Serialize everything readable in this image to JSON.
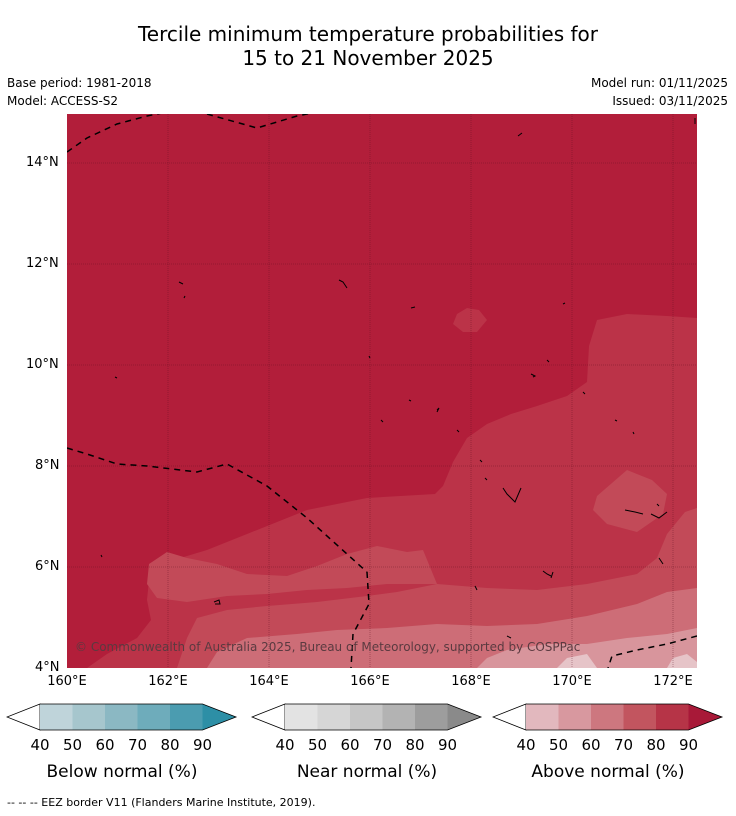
{
  "title_line1": "Tercile minimum temperature probabilities for",
  "title_line2": "15 to 21 November 2025",
  "base_period": "Base period: 1981-2018",
  "model": "Model: ACCESS-S2",
  "model_run": "Model run: 01/11/2025",
  "issued": "Issued: 03/11/2025",
  "copyright": "© Commonwealth of Australia 2025, Bureau of Meteorology, supported by COSPPac",
  "lat_labels": [
    "14°N",
    "12°N",
    "10°N",
    "8°N",
    "6°N",
    "4°N"
  ],
  "lon_labels": [
    "160°E",
    "162°E",
    "164°E",
    "166°E",
    "168°E",
    "170°E",
    "172°E"
  ],
  "colorbars": [
    {
      "label": "Below normal (%)",
      "ticks": [
        "40",
        "50",
        "60",
        "70",
        "80",
        "90"
      ],
      "colors": [
        "#bfd4da",
        "#a6c6cd",
        "#8bb8c3",
        "#6eacbb",
        "#4b9cb0",
        "#2d8fa6"
      ]
    },
    {
      "label": "Near normal (%)",
      "ticks": [
        "40",
        "50",
        "60",
        "70",
        "80",
        "90"
      ],
      "colors": [
        "#e3e3e3",
        "#d6d6d6",
        "#c6c6c6",
        "#b3b3b3",
        "#9d9d9d",
        "#8a8a8a"
      ]
    },
    {
      "label": "Above normal (%)",
      "ticks": [
        "40",
        "50",
        "60",
        "70",
        "80",
        "90"
      ],
      "colors": [
        "#e2b8be",
        "#d8989f",
        "#cd777f",
        "#c2555f",
        "#b63447",
        "#a81938"
      ]
    }
  ],
  "footnote": "--  --  -- EEZ border V11 (Flanders Marine Institute, 2019).",
  "colors": {
    "above_90": "#b21e3a",
    "above_80": "#bb3348",
    "above_70": "#c24a58",
    "above_60": "#cd6d77",
    "above_50": "#d8959c",
    "above_40": "#e6c4c8"
  }
}
